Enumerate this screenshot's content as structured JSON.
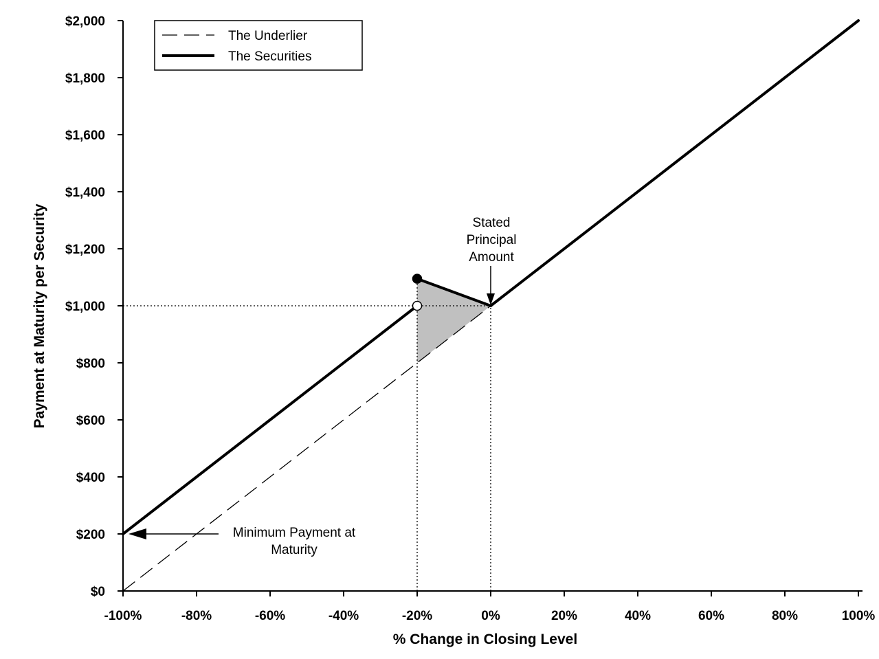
{
  "chart_data": {
    "type": "line",
    "title": "",
    "xlabel": "% Change in Closing Level",
    "ylabel": "Payment at Maturity per Security",
    "xlim": [
      -100,
      100
    ],
    "ylim": [
      0,
      2000
    ],
    "x_ticks": [
      -100,
      -80,
      -60,
      -40,
      -20,
      0,
      20,
      40,
      60,
      80,
      100
    ],
    "x_tick_labels": [
      "-100%",
      "-80%",
      "-60%",
      "-40%",
      "-20%",
      "0%",
      "20%",
      "40%",
      "60%",
      "80%",
      "100%"
    ],
    "y_ticks": [
      0,
      200,
      400,
      600,
      800,
      1000,
      1200,
      1400,
      1600,
      1800,
      2000
    ],
    "y_tick_labels": [
      "$0",
      "$200",
      "$400",
      "$600",
      "$800",
      "$1,000",
      "$1,200",
      "$1,400",
      "$1,600",
      "$1,800",
      "$2,000"
    ],
    "grid": false,
    "legend": {
      "position": "top-left",
      "entries": [
        {
          "name": "The Underlier",
          "style": "dashed"
        },
        {
          "name": "The Securities",
          "style": "solid-thick"
        }
      ]
    },
    "series": [
      {
        "name": "The Underlier",
        "style": "dashed",
        "points": [
          [
            -100,
            0
          ],
          [
            100,
            2000
          ]
        ]
      },
      {
        "name": "The Securities",
        "style": "solid-thick",
        "segments": [
          [
            [
              -100,
              200
            ],
            [
              -20,
              1000
            ]
          ],
          [
            [
              -20,
              1095
            ],
            [
              0,
              1000
            ]
          ],
          [
            [
              0,
              1000
            ],
            [
              100,
              2000
            ]
          ]
        ]
      }
    ],
    "markers": [
      {
        "x": -20,
        "y": 1095,
        "fill": "filled"
      },
      {
        "x": -20,
        "y": 1000,
        "fill": "open"
      }
    ],
    "shaded_region": {
      "color": "#c0c0c0",
      "points": [
        [
          -20,
          1095
        ],
        [
          0,
          1000
        ],
        [
          -20,
          800
        ]
      ]
    },
    "reference_lines": [
      {
        "from": [
          -100,
          1000
        ],
        "to": [
          0,
          1000
        ],
        "style": "dotted"
      },
      {
        "from": [
          -20,
          0
        ],
        "to": [
          -20,
          1095
        ],
        "style": "dotted"
      },
      {
        "from": [
          0,
          0
        ],
        "to": [
          0,
          1000
        ],
        "style": "dotted"
      }
    ],
    "annotations": [
      {
        "lines": [
          "Stated",
          "Principal",
          "Amount"
        ],
        "target": [
          0,
          1000
        ],
        "arrow": "down"
      },
      {
        "lines": [
          "Minimum Payment at",
          "Maturity"
        ],
        "target": [
          -100,
          200
        ],
        "arrow": "left"
      }
    ],
    "colors": {
      "line": "#000000",
      "shade": "#c0c0c0",
      "background": "#ffffff"
    }
  }
}
